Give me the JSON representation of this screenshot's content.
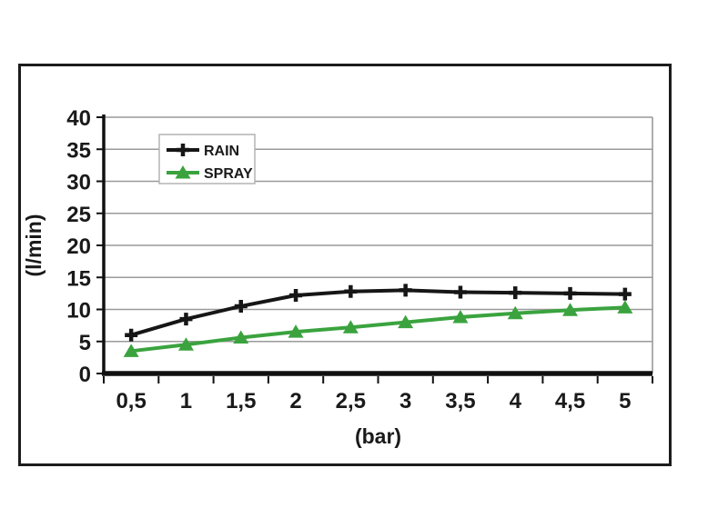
{
  "figure": {
    "background": "#ffffff",
    "frame_border_color": "#1c1c1c"
  },
  "chart_data": {
    "type": "line",
    "title": "",
    "xlabel": "(bar)",
    "ylabel": "(l/min)",
    "categories": [
      "0,5",
      "1",
      "1,5",
      "2",
      "2,5",
      "3",
      "3,5",
      "4",
      "4,5",
      "5"
    ],
    "x_values": [
      0.5,
      1,
      1.5,
      2,
      2.5,
      3,
      3.5,
      4,
      4.5,
      5
    ],
    "series": [
      {
        "name": "RAIN",
        "color": "#161616",
        "marker": "plus",
        "values": [
          6,
          8.5,
          10.5,
          12.2,
          12.8,
          13,
          12.7,
          12.6,
          12.5,
          12.4
        ]
      },
      {
        "name": "SPRAY",
        "color": "#3aa33e",
        "marker": "triangle",
        "values": [
          3.5,
          4.5,
          5.6,
          6.5,
          7.2,
          8,
          8.8,
          9.4,
          9.9,
          10.3
        ]
      }
    ],
    "ylim": [
      0,
      40
    ],
    "yticks": [
      0,
      5,
      10,
      15,
      20,
      25,
      30,
      35,
      40
    ],
    "ytick_labels": [
      "0",
      "5",
      "10",
      "15",
      "20",
      "25",
      "30",
      "35",
      "40"
    ],
    "grid": "horizontal",
    "gridline_color": "#9a9a9a",
    "axis_color": "#111111",
    "text_color": "#1a1a1a",
    "legend": {
      "position": "top-left-inside",
      "background": "#ffffff",
      "border_color": "#b3b3b3",
      "entries": [
        "RAIN",
        "SPRAY"
      ]
    }
  }
}
